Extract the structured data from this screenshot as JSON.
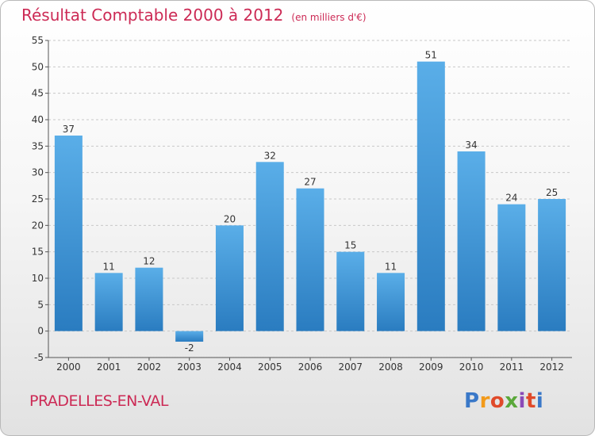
{
  "title": "Résultat Comptable 2000 à 2012",
  "unit_note": "(en milliers d'€)",
  "commune": "PRADELLES-EN-VAL",
  "logo": {
    "letters": [
      "P",
      "r",
      "o",
      "x",
      "i",
      "t",
      "i"
    ],
    "colors": [
      "#3a78c8",
      "#f29a1a",
      "#e04a2a",
      "#5aa83a",
      "#8a4ab8",
      "#e04a2a",
      "#3a78c8"
    ]
  },
  "colors": {
    "bar": "#4a9fe0",
    "bar_dark": "#2d7fc4",
    "title": "#cc2a55",
    "grid": "#c8c8c8"
  },
  "chart_data": {
    "type": "bar",
    "categories": [
      "2000",
      "2001",
      "2002",
      "2003",
      "2004",
      "2005",
      "2006",
      "2007",
      "2008",
      "2009",
      "2010",
      "2011",
      "2012"
    ],
    "values": [
      37,
      11,
      12,
      -2,
      20,
      32,
      27,
      15,
      11,
      51,
      34,
      24,
      25
    ],
    "data_labels": [
      "37",
      "11",
      "12",
      "-2",
      "20",
      "32",
      "27",
      "15",
      "11",
      "51",
      "34",
      "24",
      "25"
    ],
    "title": "Résultat Comptable 2000 à 2012",
    "xlabel": "",
    "ylabel": "",
    "ylim": [
      -5,
      55
    ],
    "yticks": [
      -5,
      0,
      5,
      10,
      15,
      20,
      25,
      30,
      35,
      40,
      45,
      50,
      55
    ],
    "grid": "horizontal dashed",
    "legend": "none"
  }
}
